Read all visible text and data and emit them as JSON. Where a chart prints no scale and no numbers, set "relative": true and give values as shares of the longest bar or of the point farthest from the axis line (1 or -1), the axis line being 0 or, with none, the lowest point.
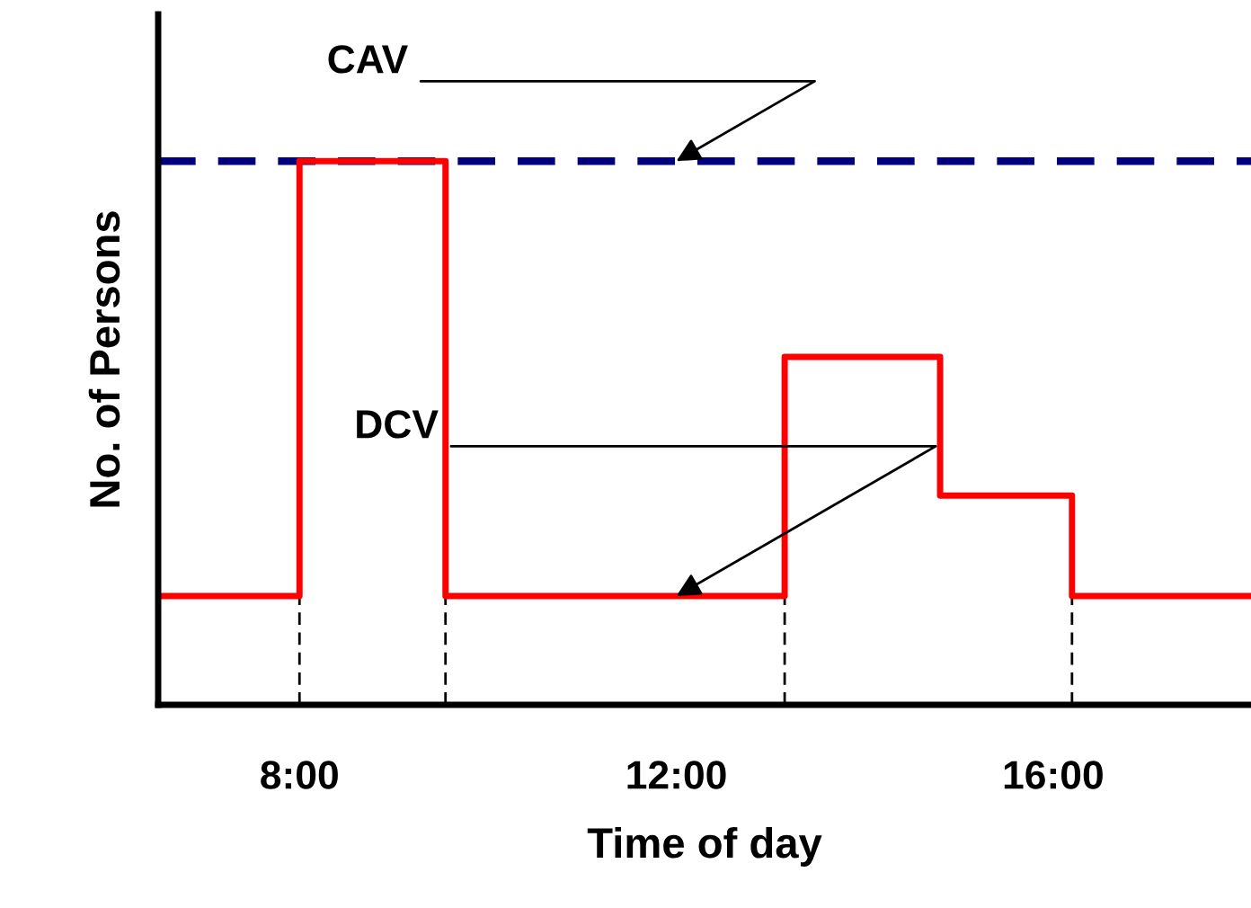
{
  "chart_data": {
    "type": "step",
    "relative": true,
    "xlabel": "Time of day",
    "ylabel": "No. of Persons",
    "x": [
      6.5,
      8,
      9.55,
      13.15,
      14.8,
      16.2,
      18.1
    ],
    "series": [
      {
        "color": "#ff0000",
        "values": [
          0.2,
          1,
          0.2,
          0.64,
          0.385,
          0.2,
          0.2
        ]
      }
    ],
    "xlim": [
      6.5,
      18.1
    ],
    "xticks": [
      {
        "value": 8,
        "label": "8:00"
      },
      {
        "value": 12,
        "label": "12:00"
      },
      {
        "value": 16,
        "label": "16:00"
      }
    ],
    "ref_lines": [
      {
        "axis": "y",
        "value": 1,
        "color": "#000080",
        "line_style": "dashed"
      },
      {
        "axis": "x",
        "value": 8,
        "color": "#000000",
        "line_style": "dashed"
      },
      {
        "axis": "x",
        "value": 9.55,
        "color": "#000000",
        "line_style": "dashed"
      },
      {
        "axis": "x",
        "value": 13.15,
        "color": "#000000",
        "line_style": "dashed"
      },
      {
        "axis": "x",
        "value": 16.2,
        "color": "#000000",
        "line_style": "dashed"
      }
    ],
    "annotations": [
      {
        "text": "CAV",
        "x": 12,
        "y": 1
      },
      {
        "text": "DCV",
        "x": 12,
        "y": 0.2
      }
    ],
    "grid": false,
    "legend": false,
    "marker": "none",
    "line_style": "solid"
  }
}
